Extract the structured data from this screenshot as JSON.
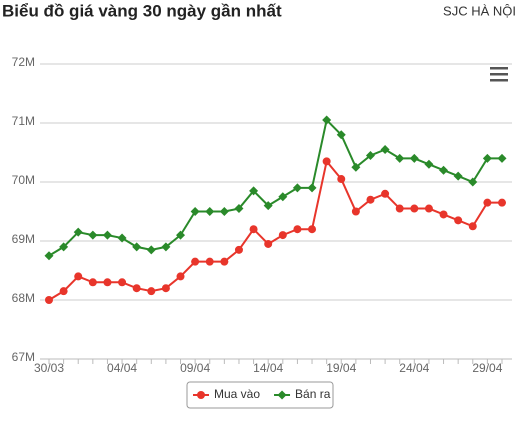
{
  "chart_data": {
    "type": "line",
    "title": "Biểu đồ giá vàng 30 ngày gần nhất",
    "subtitle": "SJC HÀ NỘI",
    "categories": [
      "30/03",
      null,
      null,
      null,
      null,
      "04/04",
      null,
      null,
      null,
      null,
      "09/04",
      null,
      null,
      null,
      null,
      "14/04",
      null,
      null,
      null,
      null,
      "19/04",
      null,
      null,
      null,
      null,
      "24/04",
      null,
      null,
      null,
      null,
      "29/04",
      null
    ],
    "series": [
      {
        "name": "Mua vào",
        "color": "#e8352b",
        "marker": "circle",
        "values": [
          68.0,
          68.15,
          68.4,
          68.3,
          68.3,
          68.3,
          68.2,
          68.15,
          68.2,
          68.4,
          68.65,
          68.65,
          68.65,
          68.85,
          69.2,
          68.95,
          69.1,
          69.2,
          69.2,
          70.35,
          70.05,
          69.5,
          69.7,
          69.8,
          69.55,
          69.55,
          69.55,
          69.45,
          69.35,
          69.25,
          69.65,
          69.65
        ]
      },
      {
        "name": "Bán ra",
        "color": "#2a8a2a",
        "marker": "diamond",
        "values": [
          68.75,
          68.9,
          69.15,
          69.1,
          69.1,
          69.05,
          68.9,
          68.85,
          68.9,
          69.1,
          69.5,
          69.5,
          69.5,
          69.55,
          69.85,
          69.6,
          69.75,
          69.9,
          69.9,
          71.05,
          70.8,
          70.25,
          70.45,
          70.55,
          70.4,
          70.4,
          70.3,
          70.2,
          70.1,
          70.0,
          70.4,
          70.4
        ]
      }
    ],
    "ylim": [
      67,
      72
    ],
    "yticks": [
      {
        "value": 67,
        "label": "67M"
      },
      {
        "value": 68,
        "label": "68M"
      },
      {
        "value": 69,
        "label": "69M"
      },
      {
        "value": 70,
        "label": "70M"
      },
      {
        "value": 71,
        "label": "71M"
      },
      {
        "value": 72,
        "label": "72M"
      }
    ],
    "grid": true,
    "legend": "bottom"
  }
}
